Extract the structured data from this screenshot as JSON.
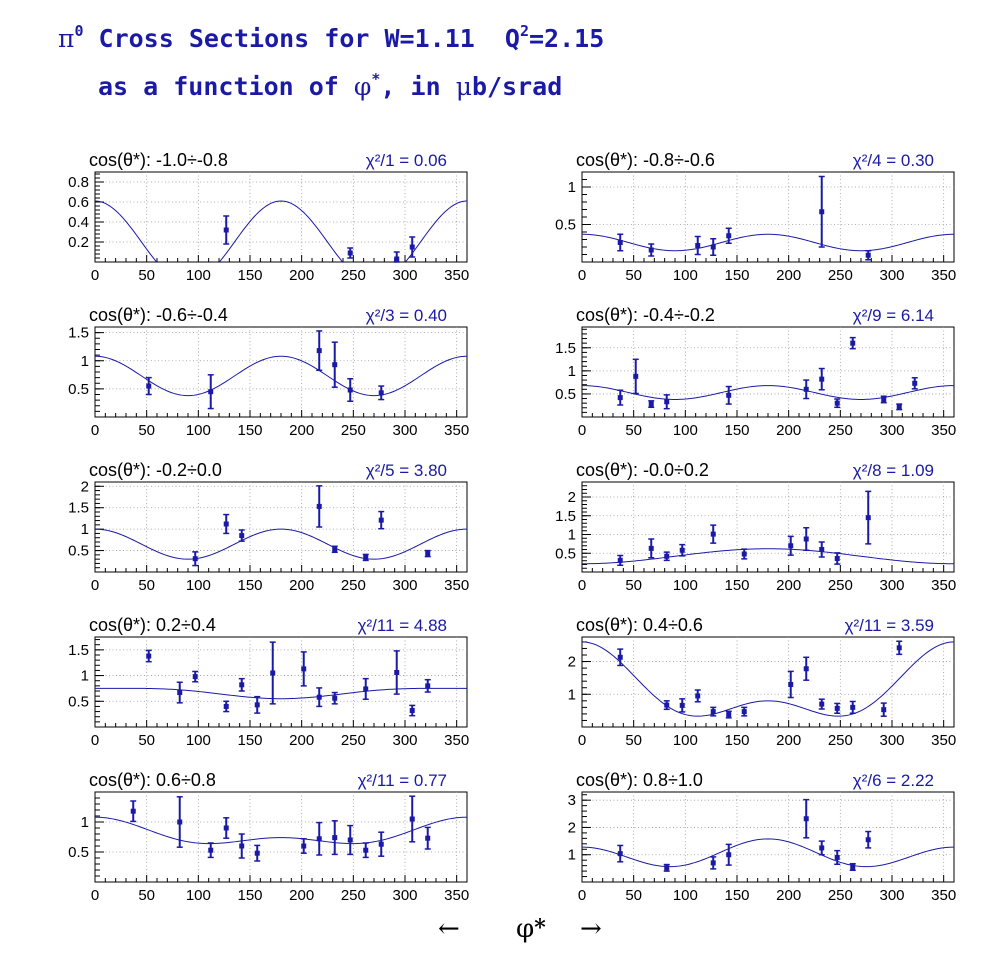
{
  "header": {
    "pi_symbol": "π",
    "pi_sup": "0",
    "line1_text": " Cross Sections for W=1.11  Q",
    "q_sup": "2",
    "line1_tail": "=2.15",
    "line2_pre": "as a function of ",
    "phi_symbol": "φ",
    "phi_sup": "*",
    "line2_mid": ", in ",
    "mu_symbol": "μ",
    "line2_tail": "b/srad"
  },
  "footer": {
    "left_arrow": "←",
    "phi_symbol": "φ",
    "star": "*",
    "right_arrow": "→"
  },
  "style": {
    "data_color": "#1a1aa6",
    "fit_color": "#1a1aa6",
    "grid_color": "#9a9a9a",
    "axis_color": "#000000"
  },
  "chart_data": [
    {
      "type": "scatter",
      "panel_label": "cos(θ*): -1.0÷-0.8",
      "chi2_label": "χ²/1 = 0.06",
      "xlim": [
        0,
        360
      ],
      "ylim": [
        0,
        0.9
      ],
      "xticks": [
        0,
        50,
        100,
        150,
        200,
        250,
        300,
        350
      ],
      "yticks": [
        0.2,
        0.4,
        0.6,
        0.8
      ],
      "ytick_labels": [
        "0.2",
        "0.4",
        "0.6",
        "0.8"
      ],
      "fit": {
        "a": 0.2,
        "b": 0,
        "c": 0.41
      },
      "points": [
        {
          "x": 127,
          "y": 0.32,
          "err": 0.14
        },
        {
          "x": 247,
          "y": 0.09,
          "err": 0.05
        },
        {
          "x": 292,
          "y": 0.03,
          "err": 0.07
        },
        {
          "x": 307,
          "y": 0.15,
          "err": 0.1
        }
      ]
    },
    {
      "type": "scatter",
      "panel_label": "cos(θ*): -0.8÷-0.6",
      "chi2_label": "χ²/4 = 0.30",
      "xlim": [
        0,
        360
      ],
      "ylim": [
        0,
        1.2
      ],
      "xticks": [
        0,
        50,
        100,
        150,
        200,
        250,
        300,
        350
      ],
      "yticks": [
        0.5,
        1.0
      ],
      "ytick_labels": [
        "0.5",
        "1"
      ],
      "fit": {
        "a": 0.26,
        "b": 0,
        "c": 0.11
      },
      "points": [
        {
          "x": 37,
          "y": 0.26,
          "err": 0.11
        },
        {
          "x": 67,
          "y": 0.16,
          "err": 0.08
        },
        {
          "x": 112,
          "y": 0.22,
          "err": 0.12
        },
        {
          "x": 127,
          "y": 0.2,
          "err": 0.11
        },
        {
          "x": 142,
          "y": 0.35,
          "err": 0.1
        },
        {
          "x": 232,
          "y": 0.67,
          "err": 0.47
        },
        {
          "x": 277,
          "y": 0.09,
          "err": 0.06
        }
      ]
    },
    {
      "type": "scatter",
      "panel_label": "cos(θ*): -0.6÷-0.4",
      "chi2_label": "χ²/3 = 0.40",
      "xlim": [
        0,
        360
      ],
      "ylim": [
        0,
        1.6
      ],
      "xticks": [
        0,
        50,
        100,
        150,
        200,
        250,
        300,
        350
      ],
      "yticks": [
        0.5,
        1.0,
        1.5
      ],
      "ytick_labels": [
        "0.5",
        "1",
        "1.5"
      ],
      "fit": {
        "a": 0.73,
        "b": 0,
        "c": 0.35
      },
      "points": [
        {
          "x": 52,
          "y": 0.55,
          "err": 0.15
        },
        {
          "x": 112,
          "y": 0.45,
          "err": 0.3
        },
        {
          "x": 217,
          "y": 1.18,
          "err": 0.35
        },
        {
          "x": 232,
          "y": 0.93,
          "err": 0.4
        },
        {
          "x": 247,
          "y": 0.48,
          "err": 0.2
        },
        {
          "x": 277,
          "y": 0.43,
          "err": 0.12
        }
      ]
    },
    {
      "type": "scatter",
      "panel_label": "cos(θ*): -0.4÷-0.2",
      "chi2_label": "χ²/9 = 6.14",
      "xlim": [
        0,
        360
      ],
      "ylim": [
        0,
        1.95
      ],
      "xticks": [
        0,
        50,
        100,
        150,
        200,
        250,
        300,
        350
      ],
      "yticks": [
        0.5,
        1.0,
        1.5
      ],
      "ytick_labels": [
        "0.5",
        "1",
        "1.5"
      ],
      "fit": {
        "a": 0.53,
        "b": 0,
        "c": 0.15
      },
      "points": [
        {
          "x": 37,
          "y": 0.42,
          "err": 0.16
        },
        {
          "x": 52,
          "y": 0.88,
          "err": 0.37
        },
        {
          "x": 67,
          "y": 0.28,
          "err": 0.07
        },
        {
          "x": 82,
          "y": 0.33,
          "err": 0.15
        },
        {
          "x": 142,
          "y": 0.47,
          "err": 0.19
        },
        {
          "x": 217,
          "y": 0.6,
          "err": 0.2
        },
        {
          "x": 232,
          "y": 0.82,
          "err": 0.23
        },
        {
          "x": 247,
          "y": 0.3,
          "err": 0.09
        },
        {
          "x": 262,
          "y": 1.6,
          "err": 0.12
        },
        {
          "x": 292,
          "y": 0.38,
          "err": 0.07
        },
        {
          "x": 307,
          "y": 0.22,
          "err": 0.06
        },
        {
          "x": 322,
          "y": 0.73,
          "err": 0.12
        }
      ]
    },
    {
      "type": "scatter",
      "panel_label": "cos(θ*): -0.2÷0.0",
      "chi2_label": "χ²/5 = 3.80",
      "xlim": [
        0,
        360
      ],
      "ylim": [
        0,
        2.1
      ],
      "xticks": [
        0,
        50,
        100,
        150,
        200,
        250,
        300,
        350
      ],
      "yticks": [
        0.5,
        1.0,
        1.5,
        2.0
      ],
      "ytick_labels": [
        "0.5",
        "1",
        "1.5",
        "2"
      ],
      "fit": {
        "a": 0.65,
        "b": 0,
        "c": 0.35
      },
      "points": [
        {
          "x": 97,
          "y": 0.31,
          "err": 0.16
        },
        {
          "x": 127,
          "y": 1.12,
          "err": 0.22
        },
        {
          "x": 142,
          "y": 0.85,
          "err": 0.13
        },
        {
          "x": 217,
          "y": 1.53,
          "err": 0.48
        },
        {
          "x": 232,
          "y": 0.53,
          "err": 0.07
        },
        {
          "x": 262,
          "y": 0.34,
          "err": 0.07
        },
        {
          "x": 277,
          "y": 1.21,
          "err": 0.2
        },
        {
          "x": 322,
          "y": 0.43,
          "err": 0.07
        }
      ]
    },
    {
      "type": "scatter",
      "panel_label": "cos(θ*): -0.0÷0.2",
      "chi2_label": "χ²/8 = 1.09",
      "xlim": [
        0,
        360
      ],
      "ylim": [
        0,
        2.4
      ],
      "xticks": [
        0,
        50,
        100,
        150,
        200,
        250,
        300,
        350
      ],
      "yticks": [
        0.5,
        1.0,
        1.5,
        2.0
      ],
      "ytick_labels": [
        "0.5",
        "1",
        "1.5",
        "2"
      ],
      "fit": {
        "a": 0.42,
        "b": -0.2,
        "c": 0.0
      },
      "points": [
        {
          "x": 37,
          "y": 0.31,
          "err": 0.13
        },
        {
          "x": 67,
          "y": 0.63,
          "err": 0.25
        },
        {
          "x": 82,
          "y": 0.42,
          "err": 0.11
        },
        {
          "x": 97,
          "y": 0.58,
          "err": 0.15
        },
        {
          "x": 127,
          "y": 1.01,
          "err": 0.24
        },
        {
          "x": 157,
          "y": 0.48,
          "err": 0.13
        },
        {
          "x": 202,
          "y": 0.7,
          "err": 0.25
        },
        {
          "x": 217,
          "y": 0.88,
          "err": 0.3
        },
        {
          "x": 232,
          "y": 0.6,
          "err": 0.2
        },
        {
          "x": 247,
          "y": 0.36,
          "err": 0.15
        },
        {
          "x": 277,
          "y": 1.45,
          "err": 0.7
        }
      ]
    },
    {
      "type": "scatter",
      "panel_label": "cos(θ*): 0.2÷0.4",
      "chi2_label": "χ²/11 = 4.88",
      "xlim": [
        0,
        360
      ],
      "ylim": [
        0,
        1.75
      ],
      "xticks": [
        0,
        50,
        100,
        150,
        200,
        250,
        300,
        350
      ],
      "yticks": [
        0.5,
        1.0,
        1.5
      ],
      "ytick_labels": [
        "0.5",
        "1",
        "1.5"
      ],
      "fit": {
        "a": 0.68,
        "b": 0.1,
        "c": -0.03
      },
      "points": [
        {
          "x": 52,
          "y": 1.38,
          "err": 0.11
        },
        {
          "x": 82,
          "y": 0.67,
          "err": 0.2
        },
        {
          "x": 97,
          "y": 0.98,
          "err": 0.1
        },
        {
          "x": 127,
          "y": 0.4,
          "err": 0.1
        },
        {
          "x": 142,
          "y": 0.82,
          "err": 0.12
        },
        {
          "x": 157,
          "y": 0.43,
          "err": 0.16
        },
        {
          "x": 172,
          "y": 1.05,
          "err": 0.6
        },
        {
          "x": 202,
          "y": 1.13,
          "err": 0.33
        },
        {
          "x": 217,
          "y": 0.58,
          "err": 0.18
        },
        {
          "x": 232,
          "y": 0.56,
          "err": 0.11
        },
        {
          "x": 262,
          "y": 0.74,
          "err": 0.2
        },
        {
          "x": 292,
          "y": 1.06,
          "err": 0.42
        },
        {
          "x": 307,
          "y": 0.32,
          "err": 0.1
        },
        {
          "x": 322,
          "y": 0.8,
          "err": 0.12
        }
      ]
    },
    {
      "type": "scatter",
      "panel_label": "cos(θ*): 0.4÷0.6",
      "chi2_label": "χ²/11 = 3.59",
      "xlim": [
        0,
        360
      ],
      "ylim": [
        0,
        2.75
      ],
      "xticks": [
        0,
        50,
        100,
        150,
        200,
        250,
        300,
        350
      ],
      "yticks": [
        1.0,
        2.0
      ],
      "ytick_labels": [
        "1",
        "2"
      ],
      "fit": {
        "a": 1.1,
        "b": 0.9,
        "c": 0.6
      },
      "points": [
        {
          "x": 37,
          "y": 2.13,
          "err": 0.25
        },
        {
          "x": 82,
          "y": 0.67,
          "err": 0.13
        },
        {
          "x": 97,
          "y": 0.66,
          "err": 0.2
        },
        {
          "x": 112,
          "y": 0.95,
          "err": 0.18
        },
        {
          "x": 127,
          "y": 0.47,
          "err": 0.13
        },
        {
          "x": 142,
          "y": 0.38,
          "err": 0.1
        },
        {
          "x": 157,
          "y": 0.47,
          "err": 0.13
        },
        {
          "x": 202,
          "y": 1.3,
          "err": 0.4
        },
        {
          "x": 217,
          "y": 1.78,
          "err": 0.35
        },
        {
          "x": 232,
          "y": 0.7,
          "err": 0.15
        },
        {
          "x": 247,
          "y": 0.57,
          "err": 0.15
        },
        {
          "x": 262,
          "y": 0.6,
          "err": 0.18
        },
        {
          "x": 292,
          "y": 0.53,
          "err": 0.2
        },
        {
          "x": 307,
          "y": 2.42,
          "err": 0.2
        }
      ]
    },
    {
      "type": "scatter",
      "panel_label": "cos(θ*): 0.6÷0.8",
      "chi2_label": "χ²/11 = 0.77",
      "xlim": [
        0,
        360
      ],
      "ylim": [
        0,
        1.5
      ],
      "xticks": [
        0,
        50,
        100,
        150,
        200,
        250,
        300,
        350
      ],
      "yticks": [
        0.5,
        1.0
      ],
      "ytick_labels": [
        "0.5",
        "1"
      ],
      "fit": {
        "a": 0.79,
        "b": 0.17,
        "c": 0.12
      },
      "points": [
        {
          "x": 37,
          "y": 1.18,
          "err": 0.17
        },
        {
          "x": 82,
          "y": 1.0,
          "err": 0.42
        },
        {
          "x": 112,
          "y": 0.53,
          "err": 0.12
        },
        {
          "x": 127,
          "y": 0.9,
          "err": 0.17
        },
        {
          "x": 142,
          "y": 0.6,
          "err": 0.2
        },
        {
          "x": 157,
          "y": 0.48,
          "err": 0.13
        },
        {
          "x": 202,
          "y": 0.6,
          "err": 0.12
        },
        {
          "x": 217,
          "y": 0.72,
          "err": 0.27
        },
        {
          "x": 232,
          "y": 0.74,
          "err": 0.28
        },
        {
          "x": 247,
          "y": 0.7,
          "err": 0.24
        },
        {
          "x": 262,
          "y": 0.53,
          "err": 0.12
        },
        {
          "x": 277,
          "y": 0.63,
          "err": 0.2
        },
        {
          "x": 307,
          "y": 1.05,
          "err": 0.38
        },
        {
          "x": 322,
          "y": 0.73,
          "err": 0.18
        }
      ]
    },
    {
      "type": "scatter",
      "panel_label": "cos(θ*): 0.8÷1.0",
      "chi2_label": "χ²/6 = 2.22",
      "xlim": [
        0,
        360
      ],
      "ylim": [
        0,
        3.3
      ],
      "xticks": [
        0,
        50,
        100,
        150,
        200,
        250,
        300,
        350
      ],
      "yticks": [
        1.0,
        2.0,
        3.0
      ],
      "ytick_labels": [
        "1",
        "2",
        "3"
      ],
      "fit": {
        "a": 1.0,
        "b": -0.15,
        "c": 0.43
      },
      "points": [
        {
          "x": 37,
          "y": 1.04,
          "err": 0.3
        },
        {
          "x": 82,
          "y": 0.52,
          "err": 0.12
        },
        {
          "x": 127,
          "y": 0.7,
          "err": 0.22
        },
        {
          "x": 142,
          "y": 1.0,
          "err": 0.38
        },
        {
          "x": 217,
          "y": 2.32,
          "err": 0.7
        },
        {
          "x": 232,
          "y": 1.25,
          "err": 0.25
        },
        {
          "x": 247,
          "y": 0.9,
          "err": 0.25
        },
        {
          "x": 262,
          "y": 0.55,
          "err": 0.12
        },
        {
          "x": 277,
          "y": 1.55,
          "err": 0.3
        }
      ]
    }
  ]
}
